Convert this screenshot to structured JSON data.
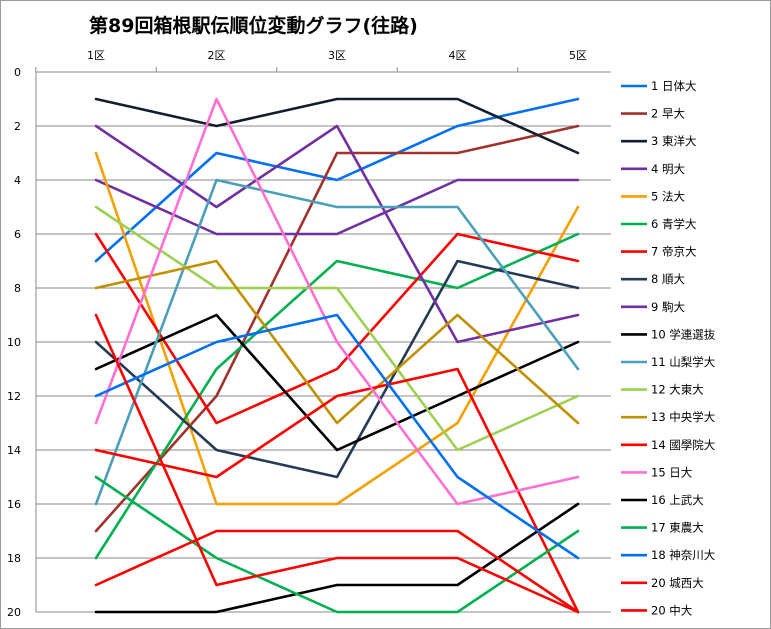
{
  "chart_data": {
    "type": "line",
    "title": "第89回箱根駅伝順位変動グラフ(往路)",
    "categories": [
      "1区",
      "2区",
      "3区",
      "4区",
      "5区"
    ],
    "y_ticks": [
      "0",
      "2",
      "4",
      "6",
      "8",
      "10",
      "12",
      "14",
      "16",
      "18",
      "20"
    ],
    "ylim": [
      0,
      20
    ],
    "y_reversed": true,
    "x_axis_position": "top",
    "grid": true,
    "legend_position": "right",
    "series": [
      {
        "name": "1 日体大",
        "color": "#0070f0",
        "values": [
          7,
          3,
          4,
          2,
          1
        ]
      },
      {
        "name": "2 早大",
        "color": "#a0322d",
        "values": [
          17,
          12,
          3,
          3,
          2
        ]
      },
      {
        "name": "3 東洋大",
        "color": "#111e2e",
        "values": [
          1,
          2,
          1,
          1,
          3
        ]
      },
      {
        "name": "4 明大",
        "color": "#7030a0",
        "values": [
          4,
          6,
          6,
          4,
          4
        ]
      },
      {
        "name": "5 法大",
        "color": "#f5a000",
        "values": [
          3,
          16,
          16,
          13,
          5
        ]
      },
      {
        "name": "6 青学大",
        "color": "#00b050",
        "values": [
          18,
          11,
          7,
          8,
          6
        ]
      },
      {
        "name": "7 帝京大",
        "color": "#ff0000",
        "values": [
          6,
          13,
          11,
          6,
          7
        ]
      },
      {
        "name": "8 順大",
        "color": "#243a55",
        "values": [
          10,
          14,
          15,
          7,
          8
        ]
      },
      {
        "name": "9 駒大",
        "color": "#7030a0",
        "values": [
          2,
          5,
          2,
          10,
          9
        ]
      },
      {
        "name": "10 学連選抜",
        "color": "#000000",
        "values": [
          11,
          9,
          14,
          12,
          10
        ]
      },
      {
        "name": "11 山梨学大",
        "color": "#4aa0b8",
        "values": [
          16,
          4,
          5,
          5,
          11
        ]
      },
      {
        "name": "12 大東大",
        "color": "#9bd050",
        "values": [
          5,
          8,
          8,
          14,
          12
        ]
      },
      {
        "name": "13 中央学大",
        "color": "#c09000",
        "values": [
          8,
          7,
          13,
          9,
          13
        ]
      },
      {
        "name": "14 國學院大",
        "color": "#ff0000",
        "values": [
          14,
          15,
          12,
          11,
          20
        ]
      },
      {
        "name": "15 日大",
        "color": "#ff6ed2",
        "values": [
          13,
          1,
          10,
          16,
          15
        ]
      },
      {
        "name": "16 上武大",
        "color": "#000000",
        "values": [
          20,
          20,
          19,
          19,
          16
        ]
      },
      {
        "name": "17 東農大",
        "color": "#00b050",
        "values": [
          15,
          18,
          20,
          20,
          17
        ]
      },
      {
        "name": "18 神奈川大",
        "color": "#0070f0",
        "values": [
          12,
          10,
          9,
          15,
          18
        ]
      },
      {
        "name": "20 城西大",
        "color": "#ff0000",
        "values": [
          19,
          17,
          17,
          17,
          20
        ]
      },
      {
        "name": "20 中大",
        "color": "#ff0000",
        "values": [
          9,
          19,
          18,
          18,
          20
        ]
      }
    ]
  }
}
